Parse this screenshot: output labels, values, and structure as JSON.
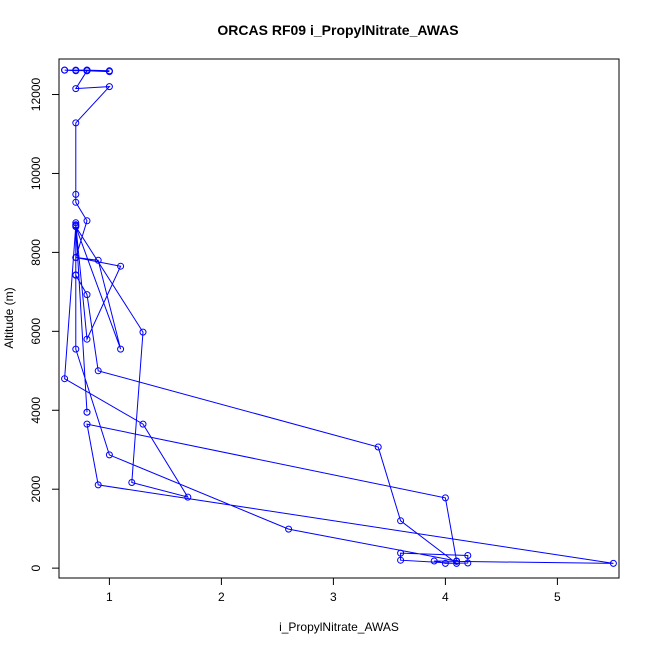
{
  "chart_data": {
    "type": "line",
    "title": "ORCAS RF09 i_PropylNitrate_AWAS",
    "xlabel": "i_PropylNitrate_AWAS",
    "ylabel": "Altitude (m)",
    "xlim": [
      0.55,
      5.55
    ],
    "ylim": [
      -250,
      12900
    ],
    "x_ticks": [
      1,
      2,
      3,
      4,
      5
    ],
    "y_ticks": [
      0,
      2000,
      4000,
      6000,
      8000,
      10000,
      12000
    ],
    "series": [
      {
        "color": "#0000ff",
        "points": [
          [
            0.6,
            12620
          ],
          [
            0.7,
            12620
          ],
          [
            0.8,
            12620
          ],
          [
            1.0,
            12600
          ],
          [
            0.8,
            12620
          ],
          [
            0.7,
            12600
          ],
          [
            0.6,
            12620
          ],
          [
            0.8,
            12600
          ],
          [
            1.0,
            12580
          ],
          [
            0.8,
            12600
          ],
          [
            0.7,
            12150
          ],
          [
            1.0,
            12200
          ],
          [
            0.7,
            11280
          ],
          [
            0.7,
            9470
          ],
          [
            0.7,
            9270
          ],
          [
            0.8,
            8800
          ],
          [
            0.7,
            7870
          ],
          [
            1.1,
            7650
          ],
          [
            0.8,
            5800
          ],
          [
            0.7,
            8700
          ],
          [
            0.7,
            8750
          ],
          [
            0.7,
            7430
          ],
          [
            0.7,
            7420
          ],
          [
            0.8,
            6930
          ],
          [
            0.9,
            5000
          ],
          [
            3.4,
            3070
          ],
          [
            3.6,
            1200
          ],
          [
            4.1,
            120
          ],
          [
            3.6,
            200
          ],
          [
            3.6,
            380
          ],
          [
            4.2,
            320
          ],
          [
            4.2,
            130
          ],
          [
            4.0,
            120
          ],
          [
            3.9,
            180
          ],
          [
            4.1,
            170
          ],
          [
            5.5,
            120
          ],
          [
            0.9,
            2110
          ],
          [
            0.8,
            3650
          ],
          [
            4.0,
            1780
          ],
          [
            4.1,
            180
          ],
          [
            2.6,
            990
          ],
          [
            1.0,
            2870
          ],
          [
            0.7,
            5550
          ],
          [
            0.7,
            7870
          ],
          [
            0.9,
            7800
          ],
          [
            1.1,
            5550
          ],
          [
            0.7,
            8650
          ],
          [
            1.3,
            5980
          ],
          [
            1.2,
            2170
          ],
          [
            1.7,
            1800
          ],
          [
            1.3,
            3650
          ],
          [
            0.6,
            4800
          ],
          [
            0.7,
            8680
          ],
          [
            0.8,
            3950
          ],
          [
            0.8,
            3950
          ]
        ]
      }
    ],
    "grid": false,
    "legend": "none"
  }
}
